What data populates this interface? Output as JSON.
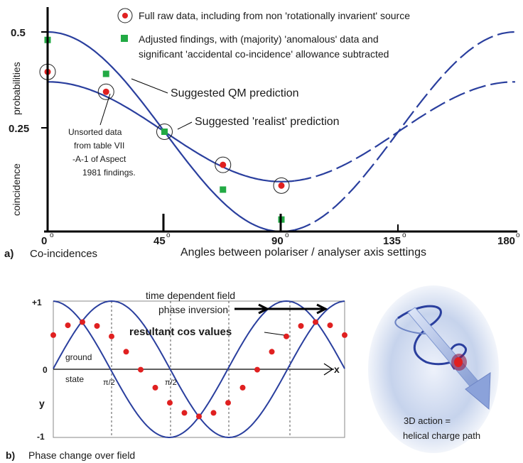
{
  "colors": {
    "curve": "#2a3f9e",
    "raw_point": "#e02020",
    "adjusted_point": "#22aa44",
    "axis": "#000000",
    "resultant_point": "#e02020",
    "sphere": "#b9c9e6"
  },
  "top_chart": {
    "legend_raw": "Full raw data, including from non 'rotationally invarient' source",
    "legend_adjusted_line1": "Adjusted findings, with (majority) 'anomalous' data and",
    "legend_adjusted_line2": "significant 'accidental co-incidence' allowance subtracted",
    "label_qm": "Suggested QM prediction",
    "label_realist": "Suggested 'realist' prediction",
    "note_lines": [
      "Unsorted data",
      "from table VII",
      "-A-1 of Aspect",
      "1981 findings."
    ],
    "y_label_1": "coincidence",
    "y_label_2": "probabilities",
    "y_ticks": [
      "0.5",
      "0.25"
    ],
    "x_ticks": [
      "0",
      "45",
      "90",
      "135",
      "180"
    ],
    "degree_symbol": "o",
    "panel_label": "a)",
    "panel_title": "Co-incidences",
    "x_axis_title": "Angles between polariser / analyser axis settings"
  },
  "chart_data": {
    "type": "scatter",
    "xlabel": "Angles between polariser / analyser axis settings",
    "ylabel": "coincidence probabilities",
    "xlim": [
      0,
      180
    ],
    "ylim": [
      0,
      0.5
    ],
    "series": [
      {
        "name": "Full raw data, including from non 'rotationally invarient' source",
        "x": [
          0,
          22.5,
          45,
          67.5,
          90
        ],
        "y": [
          0.4,
          0.35,
          0.25,
          0.167,
          0.115
        ]
      },
      {
        "name": "Adjusted findings, with (majority) 'anomalous' data and significant 'accidental co-incidence' allowance subtracted",
        "x": [
          0,
          22.5,
          45,
          67.5,
          90
        ],
        "y": [
          0.48,
          0.395,
          0.25,
          0.105,
          0.03
        ]
      },
      {
        "name": "Suggested QM prediction",
        "function": "0.5*cos^2(x)"
      },
      {
        "name": "Suggested 'realist' prediction",
        "function": "0.25 + 0.125*cos(2x)"
      }
    ]
  },
  "bottom_chart": {
    "title_line1": "time dependent field",
    "title_line2": "phase inversion",
    "resultant_label": "resultant cos  values",
    "ground_line1": "ground",
    "ground_line2": "state",
    "pi_half": "π/2",
    "y_top": "+1",
    "y_zero": "0",
    "y_bottom": "-1",
    "y_axis": "y",
    "x_axis": "x",
    "panel_label": "b)",
    "panel_title": "Phase change over field"
  },
  "helix": {
    "caption_line1": "3D action =",
    "caption_line2": "helical charge path"
  }
}
